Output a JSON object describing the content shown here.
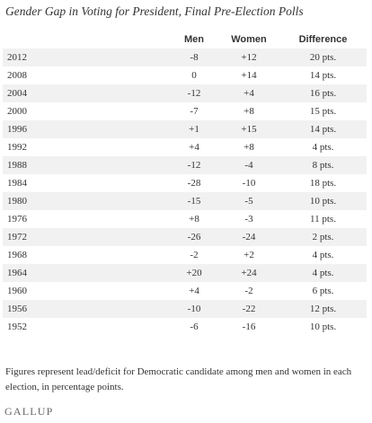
{
  "chart_data": {
    "type": "table",
    "title": "Gender Gap in Voting for President, Final Pre-Election Polls",
    "columns": [
      "",
      "Men",
      "Women",
      "Difference"
    ],
    "rows": [
      {
        "year": "2012",
        "men": "-8",
        "women": "+12",
        "difference": "20 pts."
      },
      {
        "year": "2008",
        "men": "0",
        "women": "+14",
        "difference": "14 pts."
      },
      {
        "year": "2004",
        "men": "-12",
        "women": "+4",
        "difference": "16 pts."
      },
      {
        "year": "2000",
        "men": "-7",
        "women": "+8",
        "difference": "15 pts."
      },
      {
        "year": "1996",
        "men": "+1",
        "women": "+15",
        "difference": "14 pts."
      },
      {
        "year": "1992",
        "men": "+4",
        "women": "+8",
        "difference": "4 pts."
      },
      {
        "year": "1988",
        "men": "-12",
        "women": "-4",
        "difference": "8 pts."
      },
      {
        "year": "1984",
        "men": "-28",
        "women": "-10",
        "difference": "18 pts."
      },
      {
        "year": "1980",
        "men": "-15",
        "women": "-5",
        "difference": "10 pts."
      },
      {
        "year": "1976",
        "men": "+8",
        "women": "-3",
        "difference": "11 pts."
      },
      {
        "year": "1972",
        "men": "-26",
        "women": "-24",
        "difference": "2 pts."
      },
      {
        "year": "1968",
        "men": "-2",
        "women": "+2",
        "difference": "4 pts."
      },
      {
        "year": "1964",
        "men": "+20",
        "women": "+24",
        "difference": "4 pts."
      },
      {
        "year": "1960",
        "men": "+4",
        "women": "-2",
        "difference": "6 pts."
      },
      {
        "year": "1956",
        "men": "-10",
        "women": "-22",
        "difference": "12 pts."
      },
      {
        "year": "1952",
        "men": "-6",
        "women": "-16",
        "difference": "10 pts."
      }
    ],
    "note": "Figures represent lead/deficit for Democratic candidate among men and women in each election, in percentage points.",
    "source_logo": "GALLUP"
  }
}
